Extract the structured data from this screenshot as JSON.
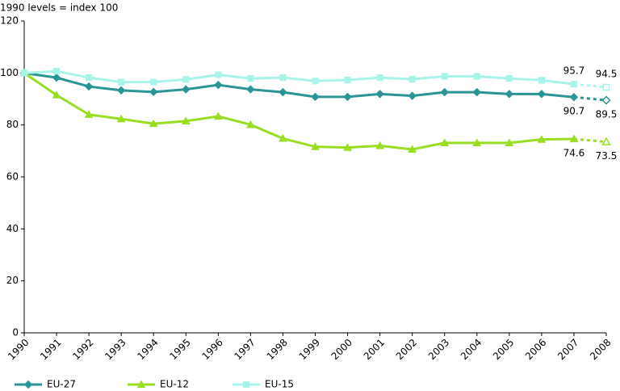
{
  "chart_data": {
    "type": "line",
    "title": "1990 levels = index 100",
    "x": [
      1990,
      1991,
      1992,
      1993,
      1994,
      1995,
      1996,
      1997,
      1998,
      1999,
      2000,
      2001,
      2002,
      2003,
      2004,
      2005,
      2006,
      2007,
      2008
    ],
    "xlim": [
      1990,
      2008
    ],
    "xticks": [
      1990,
      1991,
      1992,
      1993,
      1994,
      1995,
      1996,
      1997,
      1998,
      1999,
      2000,
      2001,
      2002,
      2003,
      2004,
      2005,
      2006,
      2007,
      2008
    ],
    "ylim": [
      0,
      120
    ],
    "yticks": [
      0,
      20,
      40,
      60,
      80,
      100,
      120
    ],
    "projected_x": 2008,
    "legend": "bottom",
    "series": [
      {
        "name": "EU-27",
        "color": "#2b9595",
        "marker": "diamond",
        "label_position": "below",
        "values": [
          100,
          98.2,
          94.8,
          93.3,
          92.7,
          93.7,
          95.4,
          93.7,
          92.6,
          90.8,
          90.8,
          91.9,
          91.2,
          92.6,
          92.6,
          91.9,
          91.9,
          90.7,
          89.5
        ],
        "value_labels": [
          null,
          null,
          null,
          null,
          null,
          null,
          null,
          null,
          null,
          null,
          null,
          null,
          null,
          null,
          null,
          null,
          null,
          "90.7",
          "89.5"
        ]
      },
      {
        "name": "EU-12",
        "color": "#99de22",
        "marker": "triangle",
        "label_position": "below",
        "values": [
          100,
          91.5,
          84,
          82.3,
          80.5,
          81.5,
          83.3,
          80.1,
          74.8,
          71.6,
          71.3,
          72,
          70.6,
          73.1,
          73.1,
          73.1,
          74.4,
          74.6,
          73.5
        ],
        "value_labels": [
          null,
          null,
          null,
          null,
          null,
          null,
          null,
          null,
          null,
          null,
          null,
          null,
          null,
          null,
          null,
          null,
          null,
          "74.6",
          "73.5"
        ]
      },
      {
        "name": "EU-15",
        "color": "#a8f4ea",
        "marker": "square",
        "label_position": "above",
        "values": [
          100,
          100.7,
          98.2,
          96.5,
          96.5,
          97.5,
          99.3,
          97.9,
          98.2,
          96.9,
          97.3,
          98.2,
          97.6,
          98.7,
          98.7,
          97.9,
          97.2,
          95.7,
          94.5
        ],
        "value_labels": [
          null,
          null,
          null,
          null,
          null,
          null,
          null,
          null,
          null,
          null,
          null,
          null,
          null,
          null,
          null,
          null,
          null,
          "95.7",
          "94.5"
        ]
      }
    ]
  }
}
